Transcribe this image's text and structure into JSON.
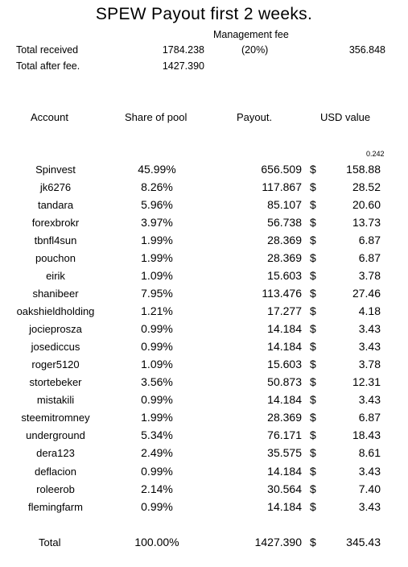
{
  "title": "SPEW Payout first 2 weeks.",
  "summary": {
    "management_fee_label": "Management fee",
    "total_received_label": "Total received",
    "total_received_value": "1784.238",
    "fee_percent": "(20%)",
    "fee_value": "356.848",
    "total_after_fee_label": "Total after fee.",
    "total_after_fee_value": "1427.390"
  },
  "columns": {
    "account": "Account",
    "share": "Share of pool",
    "payout": "Payout.",
    "usd": "USD value"
  },
  "usd_rate": "0.242",
  "currency_symbol": "$",
  "rows": [
    {
      "account": "Spinvest",
      "share": "45.99%",
      "payout": "656.509",
      "usd": "158.88"
    },
    {
      "account": "jk6276",
      "share": "8.26%",
      "payout": "117.867",
      "usd": "28.52"
    },
    {
      "account": "tandara",
      "share": "5.96%",
      "payout": "85.107",
      "usd": "20.60"
    },
    {
      "account": "forexbrokr",
      "share": "3.97%",
      "payout": "56.738",
      "usd": "13.73"
    },
    {
      "account": "tbnfl4sun",
      "share": "1.99%",
      "payout": "28.369",
      "usd": "6.87"
    },
    {
      "account": "pouchon",
      "share": "1.99%",
      "payout": "28.369",
      "usd": "6.87"
    },
    {
      "account": "eirik",
      "share": "1.09%",
      "payout": "15.603",
      "usd": "3.78"
    },
    {
      "account": "shanibeer",
      "share": "7.95%",
      "payout": "113.476",
      "usd": "27.46"
    },
    {
      "account": "oakshieldholding",
      "share": "1.21%",
      "payout": "17.277",
      "usd": "4.18"
    },
    {
      "account": "jocieprosza",
      "share": "0.99%",
      "payout": "14.184",
      "usd": "3.43"
    },
    {
      "account": "josediccus",
      "share": "0.99%",
      "payout": "14.184",
      "usd": "3.43"
    },
    {
      "account": "roger5120",
      "share": "1.09%",
      "payout": "15.603",
      "usd": "3.78"
    },
    {
      "account": "stortebeker",
      "share": "3.56%",
      "payout": "50.873",
      "usd": "12.31"
    },
    {
      "account": "mistakili",
      "share": "0.99%",
      "payout": "14.184",
      "usd": "3.43"
    },
    {
      "account": "steemitromney",
      "share": "1.99%",
      "payout": "28.369",
      "usd": "6.87"
    },
    {
      "account": "underground",
      "share": "5.34%",
      "payout": "76.171",
      "usd": "18.43"
    },
    {
      "account": "dera123",
      "share": "2.49%",
      "payout": "35.575",
      "usd": "8.61"
    },
    {
      "account": "deflacion",
      "share": "0.99%",
      "payout": "14.184",
      "usd": "3.43"
    },
    {
      "account": "roleerob",
      "share": "2.14%",
      "payout": "30.564",
      "usd": "7.40"
    },
    {
      "account": "flemingfarm",
      "share": "0.99%",
      "payout": "14.184",
      "usd": "3.43"
    }
  ],
  "total": {
    "label": "Total",
    "share": "100.00%",
    "payout": "1427.390",
    "usd": "345.43"
  }
}
